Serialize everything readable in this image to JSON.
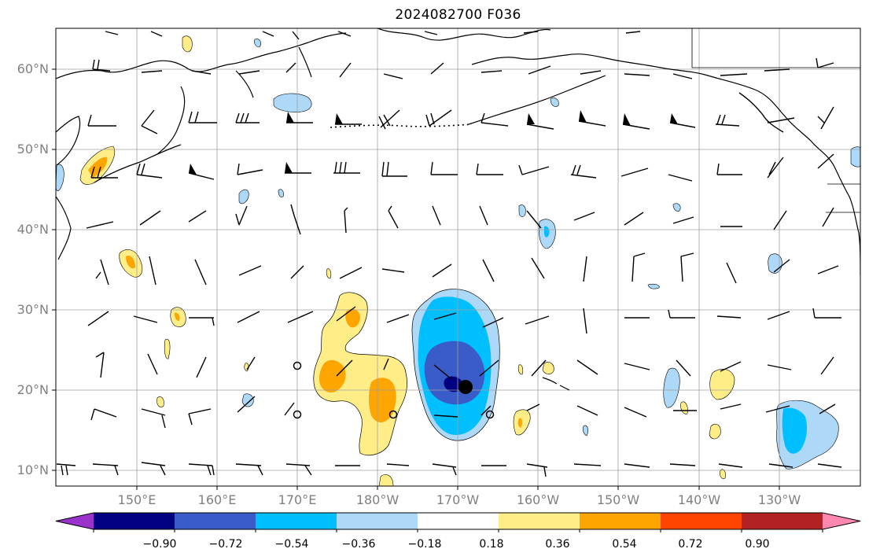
{
  "title": "2024082700 F036",
  "lat_labels": [
    "60°N",
    "50°N",
    "40°N",
    "30°N",
    "20°N",
    "10°N"
  ],
  "lon_labels": [
    "150°E",
    "160°E",
    "170°E",
    "180°W",
    "170°W",
    "160°W",
    "150°W",
    "140°W",
    "130°W"
  ],
  "colorbar": {
    "ticks": [
      "−0.90",
      "−0.72",
      "−0.54",
      "−0.36",
      "−0.18",
      "0.18",
      "0.36",
      "0.54",
      "0.72",
      "0.90"
    ],
    "colors": [
      "#9933cc",
      "#000080",
      "#3a5cc9",
      "#00bfff",
      "#add8f7",
      "#ffffff",
      "#ffee88",
      "#ffa500",
      "#ff4500",
      "#b22222",
      "#ff88b0"
    ]
  },
  "fill_colors": {
    "neg_light": "#add8f7",
    "neg_mid": "#00bfff",
    "neg_dark": "#3a5cc9",
    "neg_deep": "#000080",
    "pos_light": "#ffee88",
    "pos_mid": "#ffa500"
  }
}
